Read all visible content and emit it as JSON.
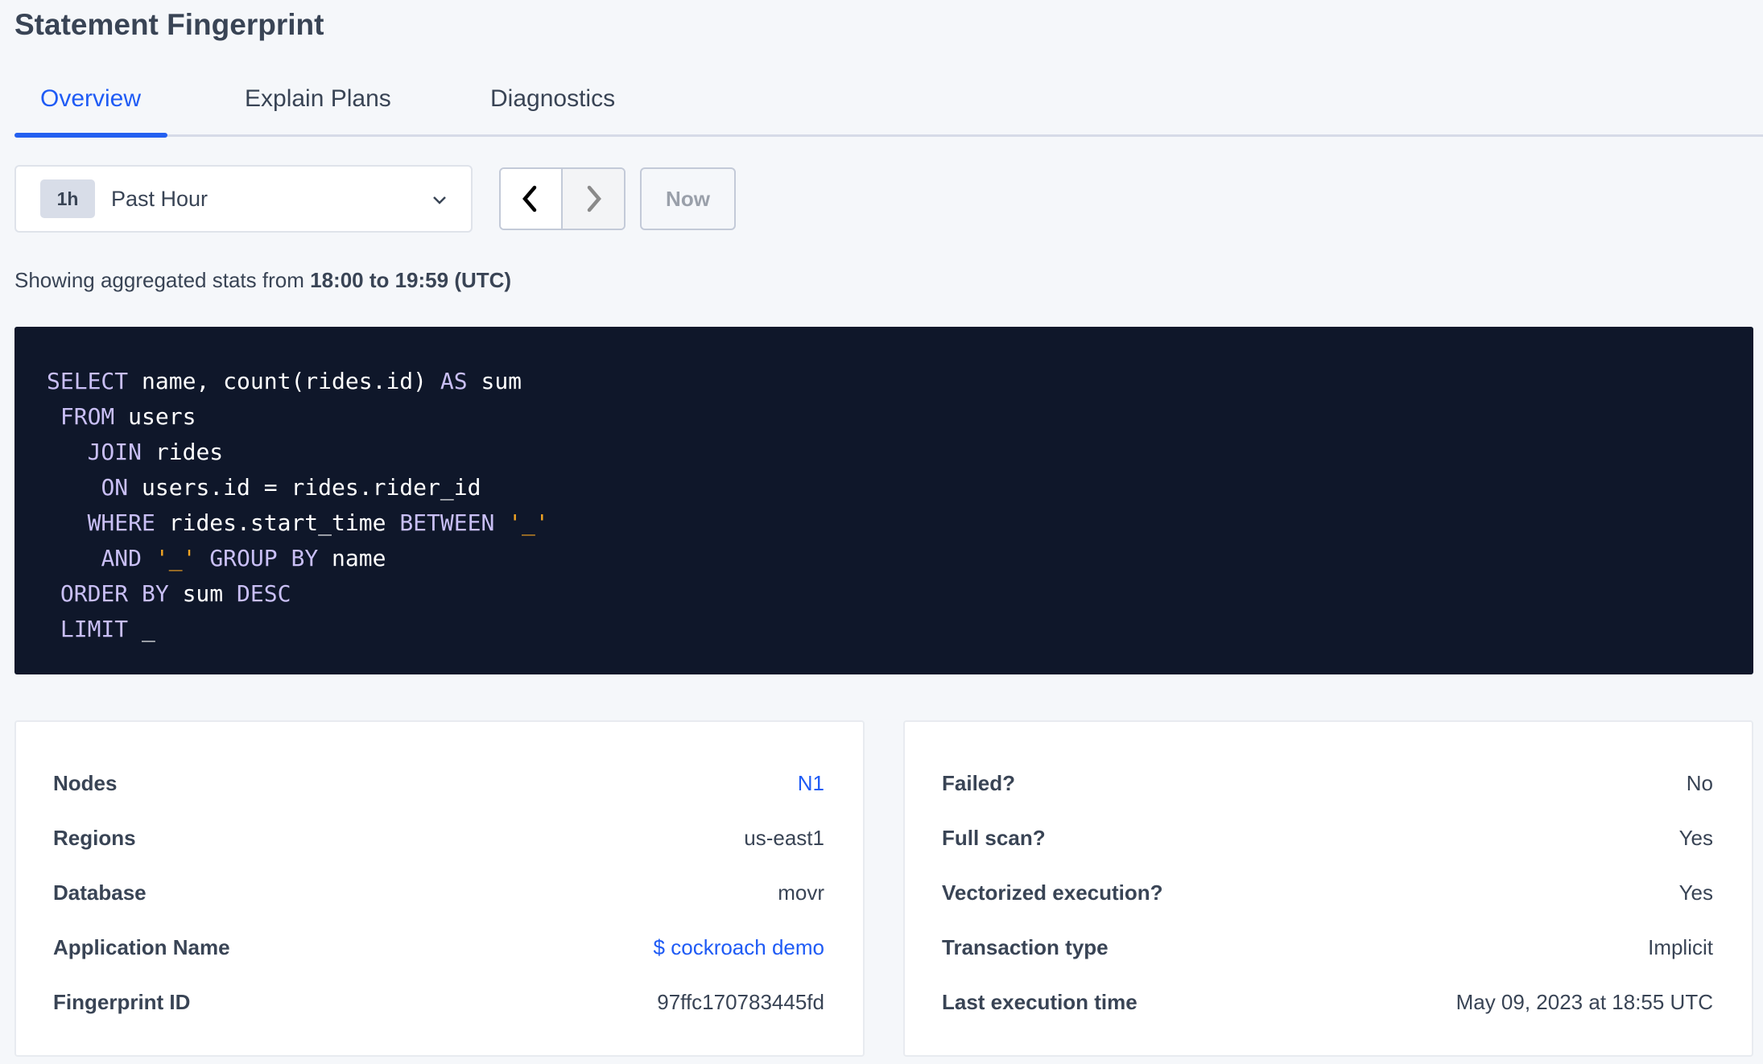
{
  "title": "Statement Fingerprint",
  "tabs": [
    {
      "label": "Overview",
      "active": true
    },
    {
      "label": "Explain Plans"
    },
    {
      "label": "Diagnostics"
    }
  ],
  "time_picker": {
    "badge": "1h",
    "label": "Past Hour",
    "now_label": "Now"
  },
  "stats": {
    "prefix": "Showing aggregated stats from ",
    "range": "18:00 to 19:59 (UTC)"
  },
  "sql": [
    [
      [
        "kw",
        "SELECT"
      ],
      [
        "t",
        " name, count(rides.id) "
      ],
      [
        "kw",
        "AS"
      ],
      [
        "t",
        " sum"
      ]
    ],
    [
      [
        "t",
        " "
      ],
      [
        "kw",
        "FROM"
      ],
      [
        "t",
        " users"
      ]
    ],
    [
      [
        "t",
        "   "
      ],
      [
        "kw",
        "JOIN"
      ],
      [
        "t",
        " rides"
      ]
    ],
    [
      [
        "t",
        "    "
      ],
      [
        "kw",
        "ON"
      ],
      [
        "t",
        " users.id = rides.rider_id"
      ]
    ],
    [
      [
        "t",
        "   "
      ],
      [
        "kw",
        "WHERE"
      ],
      [
        "t",
        " rides.start_time "
      ],
      [
        "kw",
        "BETWEEN"
      ],
      [
        "t",
        " "
      ],
      [
        "str",
        "'_'"
      ]
    ],
    [
      [
        "t",
        "    "
      ],
      [
        "kw",
        "AND"
      ],
      [
        "t",
        " "
      ],
      [
        "str",
        "'_'"
      ],
      [
        "t",
        " "
      ],
      [
        "kw",
        "GROUP BY"
      ],
      [
        "t",
        " name"
      ]
    ],
    [
      [
        "t",
        " "
      ],
      [
        "kw",
        "ORDER BY"
      ],
      [
        "t",
        " sum "
      ],
      [
        "kw",
        "DESC"
      ]
    ],
    [
      [
        "t",
        " "
      ],
      [
        "kw",
        "LIMIT"
      ],
      [
        "t",
        " _"
      ]
    ]
  ],
  "left_card": [
    {
      "label": "Nodes",
      "value": "N1",
      "link": true
    },
    {
      "label": "Regions",
      "value": "us-east1"
    },
    {
      "label": "Database",
      "value": "movr"
    },
    {
      "label": "Application Name",
      "value": "$ cockroach demo",
      "link": true
    },
    {
      "label": "Fingerprint ID",
      "value": "97ffc170783445fd"
    }
  ],
  "right_card": [
    {
      "label": "Failed?",
      "value": "No"
    },
    {
      "label": "Full scan?",
      "value": "Yes"
    },
    {
      "label": "Vectorized execution?",
      "value": "Yes"
    },
    {
      "label": "Transaction type",
      "value": "Implicit"
    },
    {
      "label": "Last execution time",
      "value": "May 09, 2023 at 18:55 UTC"
    }
  ],
  "colors": {
    "accent": "#1f5bf5",
    "code_bg": "#0f172a",
    "keyword": "#c9bff5",
    "string": "#f5a623"
  }
}
